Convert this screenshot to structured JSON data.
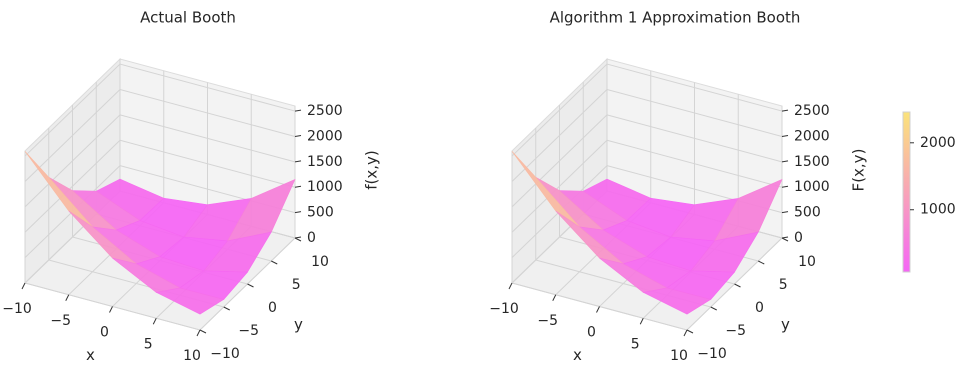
{
  "chart_data": [
    {
      "type": "surface",
      "title": "Actual Booth",
      "xlabel": "x",
      "ylabel": "y",
      "zlabel": "f(x,y)",
      "x": [
        -10,
        -5,
        0,
        5,
        10
      ],
      "y": [
        -10,
        -5,
        0,
        5,
        10
      ],
      "z": [
        [
          2594,
          1629,
          914,
          449,
          234
        ],
        [
          1649,
          884,
          369,
          104,
          89
        ],
        [
          954,
          389,
          74,
          9,
          194
        ],
        [
          509,
          144,
          29,
          164,
          549
        ],
        [
          314,
          149,
          234,
          569,
          1154
        ]
      ],
      "xlim": [
        -10,
        10
      ],
      "ylim": [
        -10,
        10
      ],
      "zlim": [
        0,
        2600
      ],
      "xticks": [
        {
          "value": -10,
          "label": "−10"
        },
        {
          "value": -5,
          "label": "−5"
        },
        0,
        5,
        10
      ],
      "yticks": [
        {
          "value": -10,
          "label": "−10"
        },
        {
          "value": -5,
          "label": "−5"
        },
        0,
        5,
        10
      ],
      "zticks": [
        0,
        500,
        1000,
        1500,
        2000,
        2500
      ],
      "colormap": [
        "#f565f5",
        "#fbe37a"
      ],
      "clim": [
        70,
        2460
      ]
    },
    {
      "type": "surface",
      "title": "Algorithm 1 Approximation Booth",
      "xlabel": "x",
      "ylabel": "y",
      "zlabel": "F(x,y)",
      "x": [
        -10,
        -5,
        0,
        5,
        10
      ],
      "y": [
        -10,
        -5,
        0,
        5,
        10
      ],
      "z": [
        [
          2594,
          1629,
          914,
          449,
          234
        ],
        [
          1649,
          884,
          369,
          104,
          89
        ],
        [
          954,
          389,
          74,
          9,
          194
        ],
        [
          509,
          144,
          29,
          164,
          549
        ],
        [
          314,
          149,
          234,
          569,
          1154
        ]
      ],
      "xlim": [
        -10,
        10
      ],
      "ylim": [
        -10,
        10
      ],
      "zlim": [
        0,
        2600
      ],
      "xticks": [
        {
          "value": -10,
          "label": "−10"
        },
        {
          "value": -5,
          "label": "−5"
        },
        0,
        5,
        10
      ],
      "yticks": [
        {
          "value": -10,
          "label": "−10"
        },
        {
          "value": -5,
          "label": "−5"
        },
        0,
        5,
        10
      ],
      "zticks": [
        0,
        500,
        1000,
        1500,
        2000,
        2500
      ],
      "colormap": [
        "#f565f5",
        "#fbe37a"
      ],
      "clim": [
        70,
        2460
      ],
      "colorbar": {
        "ticks": [
          1000,
          2000
        ]
      }
    }
  ]
}
